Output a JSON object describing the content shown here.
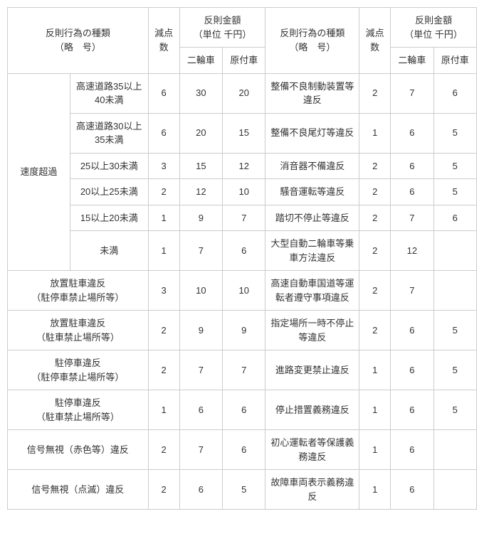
{
  "headers": {
    "violation_type": "反則行為の種類\n（略　号）",
    "points": "減点数",
    "fine": "反則金額\n（単位 千円）",
    "two_wheel": "二輪車",
    "moped": "原付車"
  },
  "left_group1_label": "速度超過",
  "left_group1": [
    {
      "sub": "高速道路35以上40未満",
      "pts": "6",
      "tw": "30",
      "mp": "20"
    },
    {
      "sub": "高速道路30以上35未満",
      "pts": "6",
      "tw": "20",
      "mp": "15"
    },
    {
      "sub": "25以上30未満",
      "pts": "3",
      "tw": "15",
      "mp": "12"
    },
    {
      "sub": "20以上25未満",
      "pts": "2",
      "tw": "12",
      "mp": "10"
    },
    {
      "sub": "15以上20未満",
      "pts": "1",
      "tw": "9",
      "mp": "7"
    },
    {
      "sub": "未満",
      "pts": "1",
      "tw": "7",
      "mp": "6"
    }
  ],
  "left_rows": [
    {
      "label": "放置駐車違反\n（駐停車禁止場所等）",
      "pts": "3",
      "tw": "10",
      "mp": "10"
    },
    {
      "label": "放置駐車違反\n（駐車禁止場所等）",
      "pts": "2",
      "tw": "9",
      "mp": "9"
    },
    {
      "label": "駐停車違反\n（駐停車禁止場所等）",
      "pts": "2",
      "tw": "7",
      "mp": "7"
    },
    {
      "label": "駐停車違反\n（駐車禁止場所等）",
      "pts": "1",
      "tw": "6",
      "mp": "6"
    },
    {
      "label": "信号無視（赤色等）違反",
      "pts": "2",
      "tw": "7",
      "mp": "6"
    },
    {
      "label": "信号無視（点滅）違反",
      "pts": "2",
      "tw": "6",
      "mp": "5"
    }
  ],
  "right_rows": [
    {
      "label": "整備不良制動装置等違反",
      "pts": "2",
      "tw": "7",
      "mp": "6"
    },
    {
      "label": "整備不良尾灯等違反",
      "pts": "1",
      "tw": "6",
      "mp": "5"
    },
    {
      "label": "消音器不備違反",
      "pts": "2",
      "tw": "6",
      "mp": "5"
    },
    {
      "label": "騒音運転等違反",
      "pts": "2",
      "tw": "6",
      "mp": "5"
    },
    {
      "label": "踏切不停止等違反",
      "pts": "2",
      "tw": "7",
      "mp": "6"
    },
    {
      "label": "大型自動二輪車等乗車方法違反",
      "pts": "2",
      "tw": "12",
      "mp": ""
    },
    {
      "label": "高速自動車国道等運転者遵守事項違反",
      "pts": "2",
      "tw": "7",
      "mp": ""
    },
    {
      "label": "指定場所一時不停止等違反",
      "pts": "2",
      "tw": "6",
      "mp": "5"
    },
    {
      "label": "進路変更禁止違反",
      "pts": "1",
      "tw": "6",
      "mp": "5"
    },
    {
      "label": "停止措置義務違反",
      "pts": "1",
      "tw": "6",
      "mp": "5"
    },
    {
      "label": "初心運転者等保護義務違反",
      "pts": "1",
      "tw": "6",
      "mp": ""
    },
    {
      "label": "故障車両表示義務違反",
      "pts": "1",
      "tw": "6",
      "mp": ""
    }
  ]
}
